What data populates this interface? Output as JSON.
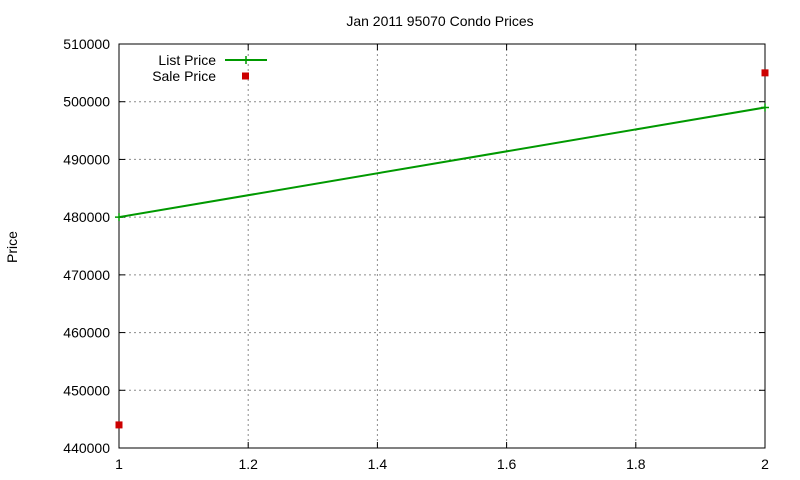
{
  "chart_data": {
    "type": "line",
    "title": "Jan 2011 95070 Condo Prices",
    "xlabel": "",
    "ylabel": "Price",
    "xlim": [
      1,
      2
    ],
    "ylim": [
      440000,
      510000
    ],
    "x_ticks": [
      1,
      1.2,
      1.4,
      1.6,
      1.8,
      2
    ],
    "x_tick_labels": [
      "1",
      "1.2",
      "1.4",
      "1.6",
      "1.8",
      "2"
    ],
    "y_ticks": [
      440000,
      450000,
      460000,
      470000,
      480000,
      490000,
      500000,
      510000
    ],
    "y_tick_labels": [
      "440000",
      "450000",
      "460000",
      "470000",
      "480000",
      "490000",
      "500000",
      "510000"
    ],
    "grid": true,
    "legend_position": "top-left",
    "series": [
      {
        "name": "List Price",
        "style": "line",
        "color": "#009900",
        "points": [
          {
            "x": 1,
            "y": 480000
          },
          {
            "x": 2,
            "y": 499000
          }
        ]
      },
      {
        "name": "Sale Price",
        "style": "points",
        "color": "#cc0000",
        "points": [
          {
            "x": 1,
            "y": 444000
          },
          {
            "x": 2,
            "y": 505000
          }
        ]
      }
    ]
  }
}
